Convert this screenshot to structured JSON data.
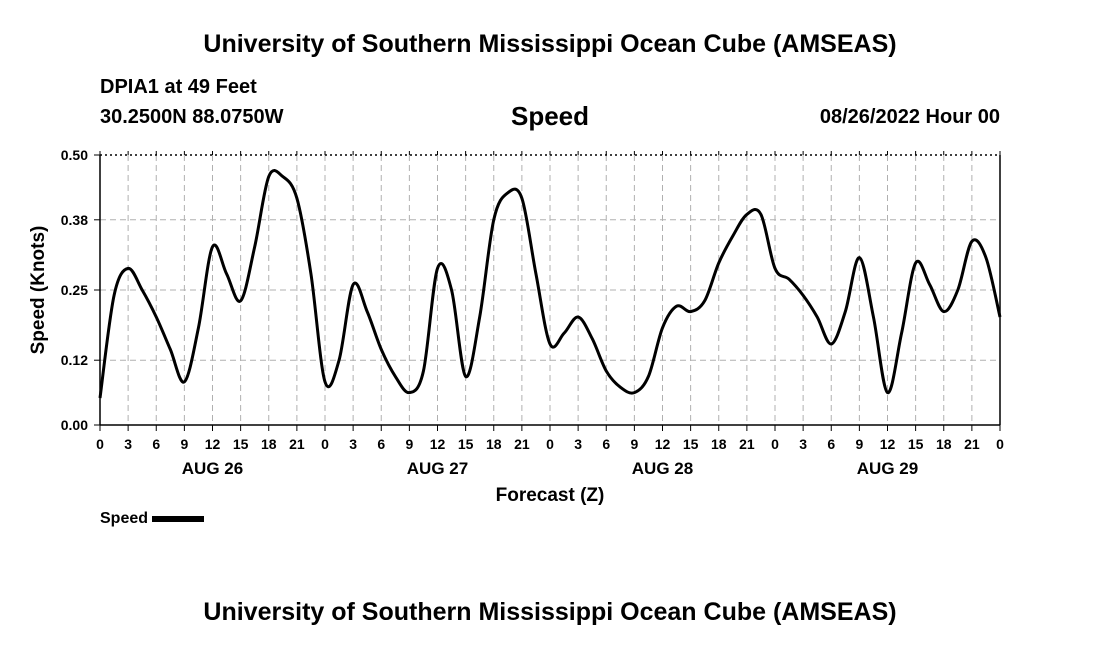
{
  "header": {
    "title": "University of Southern Mississippi Ocean Cube (AMSEAS)",
    "station": "DPIA1 at 49 Feet",
    "coords": "30.2500N  88.0750W",
    "datetime": "08/26/2022 Hour 00"
  },
  "footer": {
    "title": "University of Southern Mississippi Ocean Cube (AMSEAS)"
  },
  "chart_data": {
    "type": "line",
    "title": "Speed",
    "xlabel": "Forecast (Z)",
    "ylabel": "Speed (Knots)",
    "xlim": [
      0,
      96
    ],
    "ylim": [
      0,
      0.5
    ],
    "yticks": [
      0.0,
      0.12,
      0.25,
      0.38,
      0.5
    ],
    "ytick_labels": [
      "0.00",
      "0.12",
      "0.25",
      "0.38",
      "0.50"
    ],
    "xtick_labels": [
      "0",
      "3",
      "6",
      "9",
      "12",
      "15",
      "18",
      "21",
      "0",
      "3",
      "6",
      "9",
      "12",
      "15",
      "18",
      "21",
      "0",
      "3",
      "6",
      "9",
      "12",
      "15",
      "18",
      "21",
      "0",
      "3",
      "6",
      "9",
      "12",
      "15",
      "18",
      "21",
      "0"
    ],
    "day_labels": [
      "AUG 26",
      "AUG 27",
      "AUG 28",
      "AUG 29"
    ],
    "grid": true,
    "legend": "bottom-left",
    "series": [
      {
        "name": "Speed",
        "color": "#000000",
        "x": [
          0,
          1.5,
          3,
          4.5,
          6,
          7.5,
          9,
          10.5,
          12,
          13.5,
          15,
          16.5,
          18,
          19.5,
          21,
          22.5,
          24,
          25.5,
          27,
          28.5,
          30,
          31.5,
          33,
          34.5,
          36,
          37.5,
          39,
          40.5,
          42,
          43.5,
          45,
          46.5,
          48,
          49.5,
          51,
          52.5,
          54,
          55.5,
          57,
          58.5,
          60,
          61.5,
          63,
          64.5,
          66,
          67.5,
          69,
          70.5,
          72,
          73.5,
          75,
          76.5,
          78,
          79.5,
          81,
          82.5,
          84,
          85.5,
          87,
          88.5,
          90,
          91.5,
          93,
          94.5,
          96
        ],
        "values": [
          0.05,
          0.24,
          0.29,
          0.25,
          0.2,
          0.14,
          0.08,
          0.18,
          0.33,
          0.28,
          0.23,
          0.33,
          0.46,
          0.46,
          0.42,
          0.28,
          0.08,
          0.12,
          0.26,
          0.21,
          0.14,
          0.09,
          0.06,
          0.1,
          0.29,
          0.25,
          0.09,
          0.2,
          0.38,
          0.43,
          0.42,
          0.28,
          0.15,
          0.17,
          0.2,
          0.16,
          0.1,
          0.07,
          0.06,
          0.09,
          0.18,
          0.22,
          0.21,
          0.23,
          0.3,
          0.35,
          0.39,
          0.39,
          0.29,
          0.27,
          0.24,
          0.2,
          0.15,
          0.21,
          0.31,
          0.2,
          0.06,
          0.17,
          0.3,
          0.26,
          0.21,
          0.25,
          0.34,
          0.31,
          0.2
        ]
      }
    ]
  }
}
